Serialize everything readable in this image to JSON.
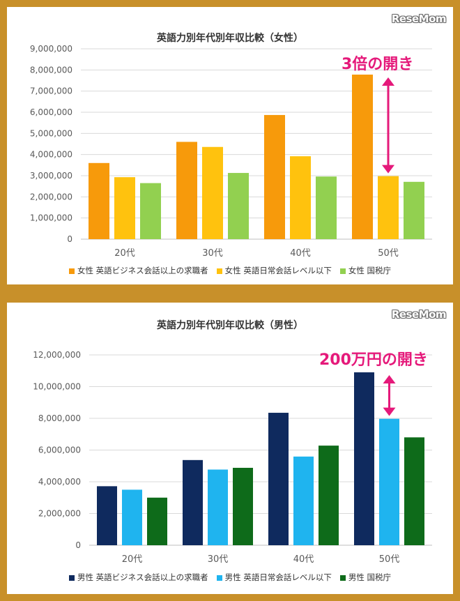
{
  "logo_text": "ReseMom",
  "chart_data": [
    {
      "type": "bar",
      "title": "英語力別年代別年収比較（女性）",
      "categories": [
        "20代",
        "30代",
        "40代",
        "50代"
      ],
      "series": [
        {
          "name": "女性 英語ビジネス会話以上の求職者",
          "color": "#f79a0b",
          "values": [
            3600000,
            4600000,
            5870000,
            7780000
          ]
        },
        {
          "name": "女性 英語日常会話レベル以下",
          "color": "#ffc20e",
          "values": [
            2930000,
            4360000,
            3920000,
            2980000
          ]
        },
        {
          "name": "女性 国税庁",
          "color": "#92d050",
          "values": [
            2650000,
            3130000,
            2960000,
            2710000
          ]
        }
      ],
      "ylim": [
        0,
        9000000
      ],
      "yticks": [
        0,
        1000000,
        2000000,
        3000000,
        4000000,
        5000000,
        6000000,
        7000000,
        8000000,
        9000000
      ],
      "ytick_labels": [
        "0",
        "1,000,000",
        "2,000,000",
        "3,000,000",
        "4,000,000",
        "5,000,000",
        "6,000,000",
        "7,000,000",
        "8,000,000",
        "9,000,000"
      ],
      "grid": true,
      "legend_position": "bottom",
      "annotation": "3倍の開き",
      "arrow_color": "#e5197a"
    },
    {
      "type": "bar",
      "title": "英語力別年代別年収比較（男性）",
      "categories": [
        "20代",
        "30代",
        "40代",
        "50代"
      ],
      "series": [
        {
          "name": "男性 英語ビジネス会話以上の求職者",
          "color": "#0f2a5e",
          "values": [
            3720000,
            5370000,
            8350000,
            10900000
          ]
        },
        {
          "name": "男性 英語日常会話レベル以下",
          "color": "#1fb4ef",
          "values": [
            3500000,
            4770000,
            5590000,
            7970000
          ]
        },
        {
          "name": "男性 国税庁",
          "color": "#0e6b1a",
          "values": [
            3000000,
            4880000,
            6280000,
            6800000
          ]
        }
      ],
      "ylim": [
        0,
        12000000
      ],
      "yticks": [
        0,
        2000000,
        4000000,
        6000000,
        8000000,
        10000000,
        12000000
      ],
      "ytick_labels": [
        "0",
        "2,000,000",
        "4,000,000",
        "6,000,000",
        "8,000,000",
        "10,000,000",
        "12,000,000"
      ],
      "grid": true,
      "legend_position": "bottom",
      "annotation": "200万円の開き",
      "arrow_color": "#e5197a"
    }
  ]
}
